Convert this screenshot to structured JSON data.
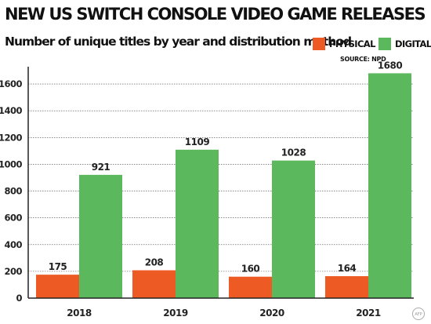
{
  "header": {
    "title": "NEW US SWITCH CONSOLE VIDEO GAME RELEASES",
    "subtitle": "Number of unique titles by year and distribution method",
    "source": "SOURCE: NPD",
    "credit": "AFP"
  },
  "colors": {
    "physical": "#ee5a24",
    "digital": "#5cb85c",
    "grid": "#444444"
  },
  "chart_data": {
    "type": "bar",
    "categories": [
      "2018",
      "2019",
      "2020",
      "2021"
    ],
    "series": [
      {
        "name": "PHYSICAL",
        "values": [
          175,
          208,
          160,
          164
        ]
      },
      {
        "name": "DIGITAL",
        "values": [
          921,
          1109,
          1028,
          1680
        ]
      }
    ],
    "title": "NEW US SWITCH CONSOLE VIDEO GAME RELEASES",
    "subtitle": "Number of unique titles by year and distribution method",
    "xlabel": "",
    "ylabel": "",
    "ylim": [
      0,
      1700
    ],
    "yticks": [
      0,
      200,
      400,
      600,
      800,
      1000,
      1200,
      1400,
      1600
    ],
    "grid": true,
    "legend": "top-right"
  }
}
